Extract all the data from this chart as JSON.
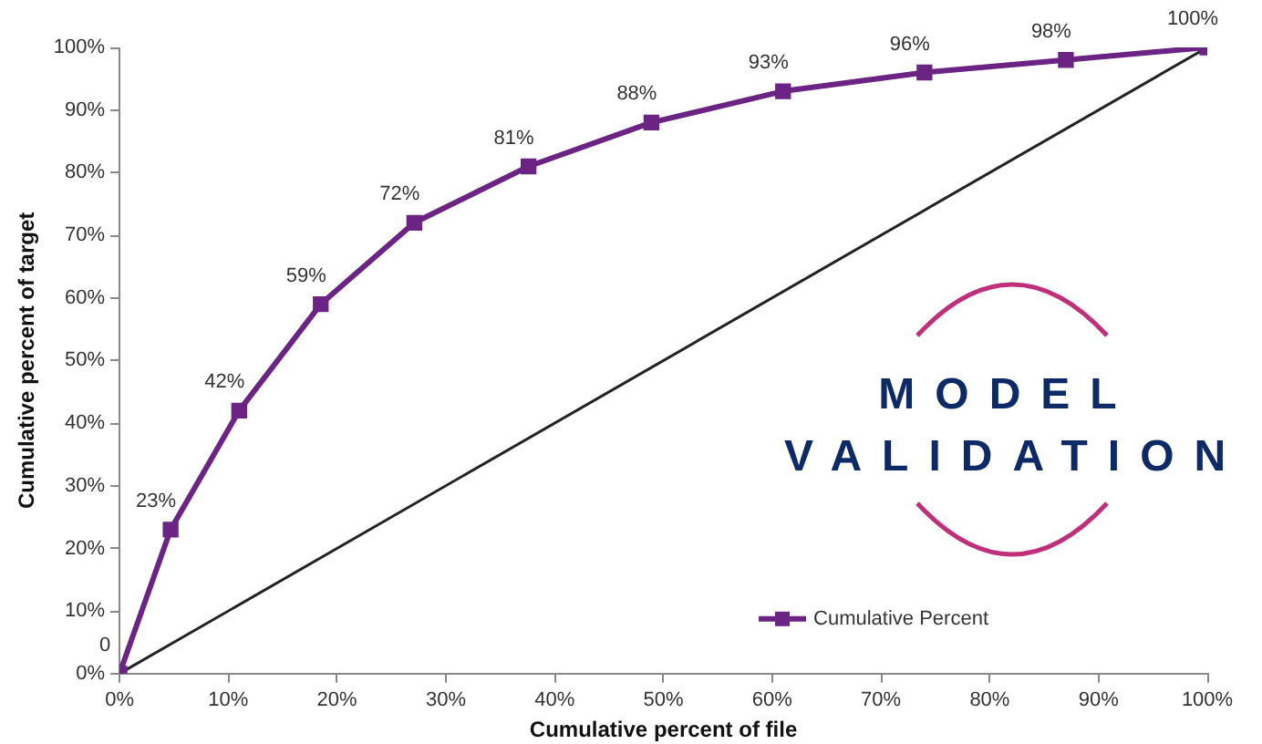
{
  "chart_data": {
    "type": "line",
    "xlabel": "Cumulative percent of file",
    "ylabel": "Cumulative percent of target",
    "xlim": [
      0,
      100
    ],
    "ylim": [
      0,
      100
    ],
    "xticks": [
      {
        "value": 0,
        "label": "0%"
      },
      {
        "value": 10,
        "label": "10%"
      },
      {
        "value": 20,
        "label": "20%"
      },
      {
        "value": 30,
        "label": "30%"
      },
      {
        "value": 40,
        "label": "40%"
      },
      {
        "value": 50,
        "label": "50%"
      },
      {
        "value": 60,
        "label": "60%"
      },
      {
        "value": 70,
        "label": "70%"
      },
      {
        "value": 80,
        "label": "80%"
      },
      {
        "value": 90,
        "label": "90%"
      },
      {
        "value": 100,
        "label": "100%"
      }
    ],
    "yticks": [
      {
        "value": 0,
        "label": "0%"
      },
      {
        "value": 10,
        "label": "10%"
      },
      {
        "value": 20,
        "label": "20%"
      },
      {
        "value": 30,
        "label": "30%"
      },
      {
        "value": 40,
        "label": "40%"
      },
      {
        "value": 50,
        "label": "50%"
      },
      {
        "value": 60,
        "label": "60%"
      },
      {
        "value": 70,
        "label": "70%"
      },
      {
        "value": 80,
        "label": "80%"
      },
      {
        "value": 90,
        "label": "90%"
      },
      {
        "value": 100,
        "label": "100%"
      }
    ],
    "grid": false,
    "legend": "bottom right",
    "series": [
      {
        "name": "Cumulative Percent",
        "color": "#6b2483",
        "marker": "square",
        "x": [
          0,
          4.7,
          11,
          18.5,
          27.1,
          37.6,
          48.9,
          61,
          74,
          87,
          100
        ],
        "values": [
          0,
          23,
          42,
          59,
          72,
          81,
          88,
          93,
          96,
          98,
          100
        ],
        "value_labels": [
          "0",
          "23%",
          "42%",
          "59%",
          "72%",
          "81%",
          "88%",
          "93%",
          "96%",
          "98%",
          "100%"
        ]
      },
      {
        "color": "#222222",
        "marker": "none",
        "x": [
          0,
          100
        ],
        "values": [
          0,
          100
        ]
      }
    ],
    "annotations": [
      "MODEL VALIDATION"
    ]
  }
}
